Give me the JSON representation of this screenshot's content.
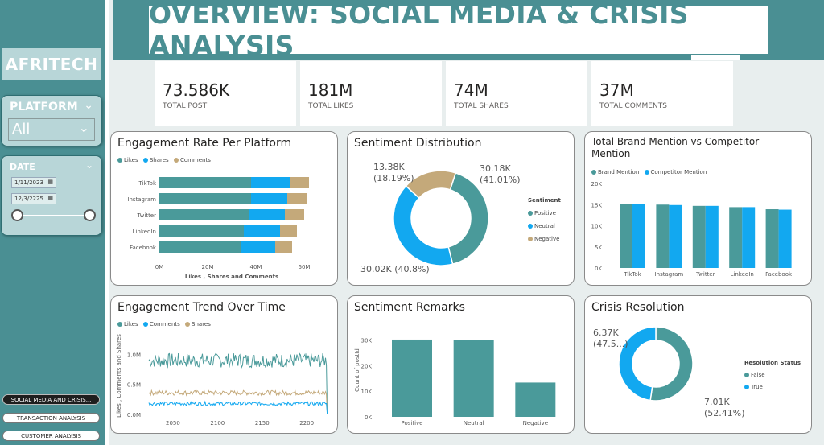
{
  "header": {
    "title": "OVERVIEW: SOCIAL MEDIA & CRISIS ANALYSIS"
  },
  "sidebar": {
    "brand": "AFRITECH",
    "platform_slicer": {
      "title": "PLATFORM",
      "value": "All"
    },
    "date_slicer": {
      "title": "DATE",
      "start": "1/11/2023",
      "end": "12/3/2225"
    },
    "nav": [
      {
        "label": "SOCIAL MEDIA AND CRISIS...",
        "active": true
      },
      {
        "label": "TRANSACTION ANALYSIS",
        "active": false
      },
      {
        "label": "CUSTOMER ANALYSIS",
        "active": false
      }
    ]
  },
  "kpis": [
    {
      "value": "73.586K",
      "label": "TOTAL POST"
    },
    {
      "value": "181M",
      "label": "TOTAL LIKES"
    },
    {
      "value": "74M",
      "label": "TOTAL SHARES"
    },
    {
      "value": "37M",
      "label": "TOTAL COMMENTS"
    }
  ],
  "colors": {
    "teal": "#4a9a9a",
    "blue": "#12a8f0",
    "tan": "#c4a97a",
    "sidebar": "#4a8f93"
  },
  "cards": {
    "engagement_rate": {
      "title": "Engagement Rate Per Platform",
      "xlabel": "Likes , Shares and Comments",
      "legend": [
        "Likes",
        "Shares",
        "Comments"
      ]
    },
    "sentiment_dist": {
      "title": "Sentiment Distribution",
      "legend_title": "Sentiment",
      "legend": [
        "Positive",
        "Neutral",
        "Negative"
      ],
      "labels": {
        "positive": "30.18K",
        "positive_pct": "(41.01%)",
        "negative": "13.38K",
        "negative_pct": "(18.19%)",
        "neutral": "30.02K (40.8%)"
      }
    },
    "brand_mention": {
      "title": "Total Brand Mention vs Competitor Mention",
      "legend": [
        "Brand Mention",
        "Competitor Mention"
      ]
    },
    "engagement_trend": {
      "title": "Engagement Trend Over Time",
      "legend": [
        "Likes",
        "Comments",
        "Shares"
      ],
      "ylabel": "Likes , Comments and Shares"
    },
    "sentiment_remarks": {
      "title": "Sentiment Remarks",
      "ylabel": "Count of postId"
    },
    "crisis": {
      "title": "Crisis Resolution",
      "legend_title": "Resolution Status",
      "legend": [
        "False",
        "True"
      ],
      "labels": {
        "true_val": "6.37K",
        "true_pct": "(47.5...)",
        "false_val": "7.01K",
        "false_pct": "(52.41%)"
      }
    }
  },
  "chart_data": [
    {
      "type": "bar",
      "title": "Engagement Rate Per Platform",
      "orientation": "horizontal-stacked",
      "categories": [
        "TikTok",
        "Instagram",
        "Twitter",
        "LinkedIn",
        "Facebook"
      ],
      "series": [
        {
          "name": "Likes",
          "values": [
            38,
            38,
            37,
            35,
            34
          ]
        },
        {
          "name": "Shares",
          "values": [
            16,
            15,
            15,
            15,
            14
          ]
        },
        {
          "name": "Comments",
          "values": [
            8,
            8,
            8,
            7,
            7
          ]
        }
      ],
      "xticks": [
        "0M",
        "20M",
        "40M",
        "60M"
      ],
      "xlim": [
        0,
        60
      ],
      "xlabel": "Likes , Shares and Comments"
    },
    {
      "type": "pie",
      "title": "Sentiment Distribution",
      "donut": true,
      "categories": [
        "Positive",
        "Neutral",
        "Negative"
      ],
      "values": [
        30.18,
        30.02,
        13.38
      ]
    },
    {
      "type": "bar",
      "title": "Total Brand Mention vs Competitor Mention",
      "categories": [
        "TikTok",
        "Instagram",
        "Twitter",
        "LinkedIn",
        "Facebook"
      ],
      "series": [
        {
          "name": "Brand Mention",
          "values": [
            15200,
            15000,
            14700,
            14400,
            13900
          ]
        },
        {
          "name": "Competitor Mention",
          "values": [
            15100,
            14900,
            14700,
            14400,
            13800
          ]
        }
      ],
      "yticks": [
        "0K",
        "5K",
        "10K",
        "15K",
        "20K"
      ],
      "ylim": [
        0,
        20000
      ]
    },
    {
      "type": "line",
      "title": "Engagement Trend Over Time",
      "xticks": [
        "2050",
        "2100",
        "2150",
        "2200"
      ],
      "xlim": [
        2023,
        2226
      ],
      "yticks": [
        "0.0M",
        "0.5M",
        "1.0M"
      ],
      "ylim": [
        0,
        1.3
      ],
      "series": [
        {
          "name": "Likes",
          "level": 0.9,
          "noise": 0.12
        },
        {
          "name": "Shares",
          "level": 0.36,
          "noise": 0.04
        },
        {
          "name": "Comments",
          "level": 0.18,
          "noise": 0.03
        }
      ]
    },
    {
      "type": "bar",
      "title": "Sentiment Remarks",
      "categories": [
        "Positive",
        "Neutral",
        "Negative"
      ],
      "values": [
        30180,
        30020,
        13380
      ],
      "yticks": [
        "0K",
        "10K",
        "20K",
        "30K"
      ],
      "ylim": [
        0,
        33000
      ],
      "ylabel": "Count of postId"
    },
    {
      "type": "pie",
      "title": "Crisis Resolution",
      "donut": true,
      "categories": [
        "False",
        "True"
      ],
      "values": [
        7.01,
        6.37
      ]
    }
  ]
}
